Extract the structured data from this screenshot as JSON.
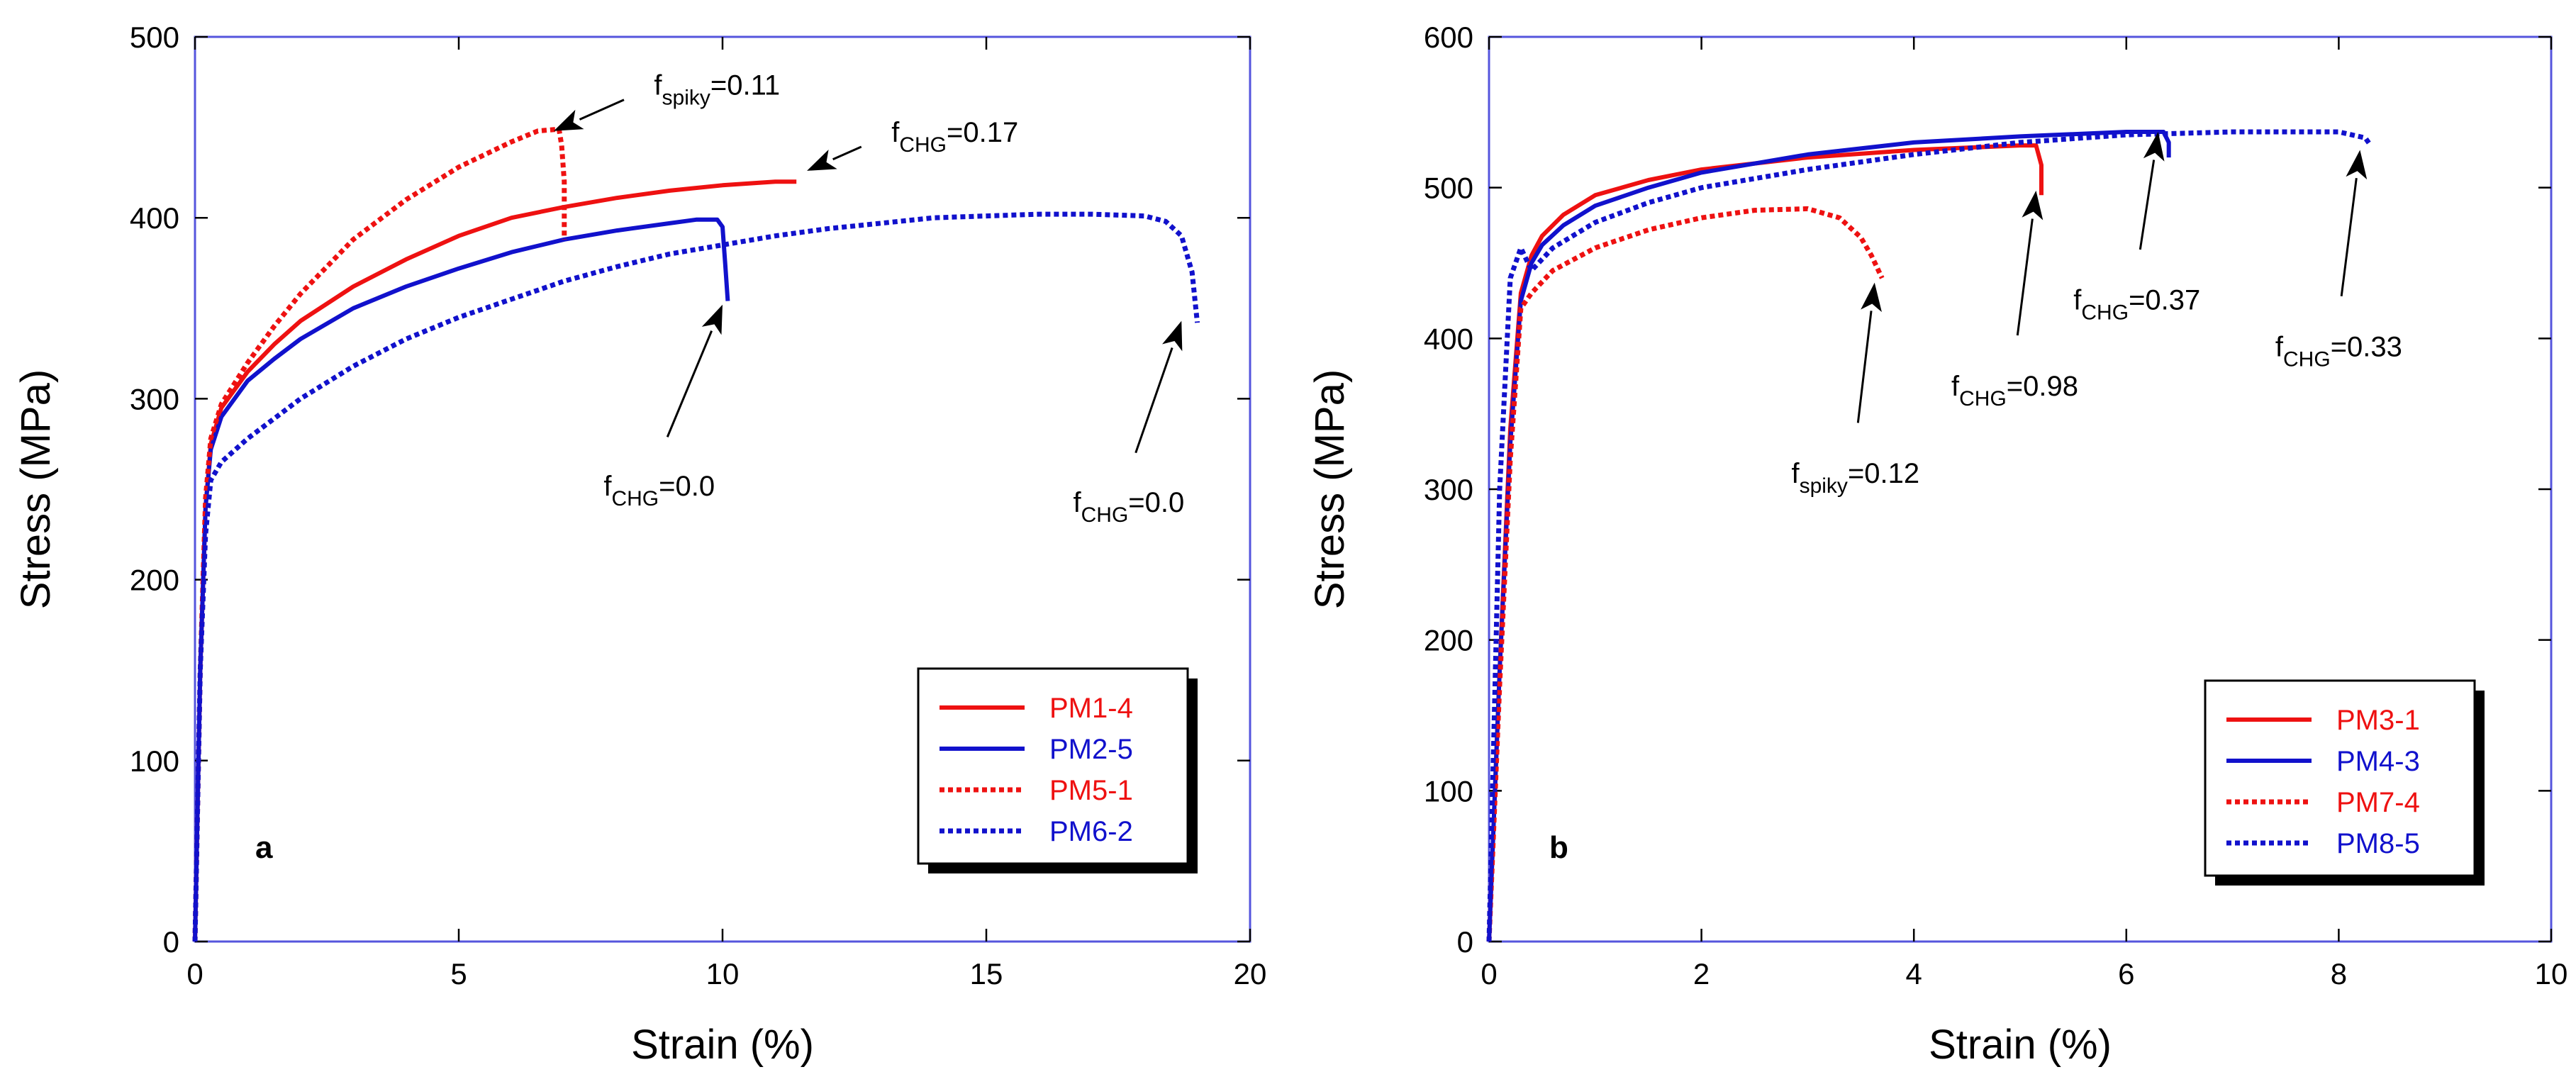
{
  "colors": {
    "red": "#ee1111",
    "blue": "#1111cc",
    "frame": "#5555dd"
  },
  "chart_data": [
    {
      "type": "line",
      "panel_label": "a",
      "xlabel": "Strain (%)",
      "ylabel": "Stress (MPa)",
      "xlim": [
        0,
        20
      ],
      "ylim": [
        0,
        500
      ],
      "xticks": [
        0,
        5,
        10,
        15,
        20
      ],
      "yticks": [
        0,
        100,
        200,
        300,
        400,
        500
      ],
      "series": [
        {
          "name": "PM1-4",
          "color": "red",
          "style": "solid",
          "x": [
            0,
            0.1,
            0.2,
            0.3,
            0.5,
            1,
            1.5,
            2,
            3,
            4,
            5,
            6,
            7,
            8,
            9,
            10,
            11,
            11.4
          ],
          "y": [
            0,
            150,
            240,
            275,
            295,
            315,
            330,
            343,
            362,
            377,
            390,
            400,
            406,
            411,
            415,
            418,
            420,
            420
          ]
        },
        {
          "name": "PM2-5",
          "color": "blue",
          "style": "solid",
          "x": [
            0,
            0.1,
            0.2,
            0.3,
            0.5,
            1,
            1.5,
            2,
            3,
            4,
            5,
            6,
            7,
            8,
            9,
            9.5,
            9.9,
            10.0,
            10.05,
            10.1
          ],
          "y": [
            0,
            150,
            240,
            272,
            290,
            310,
            322,
            333,
            350,
            362,
            372,
            381,
            388,
            393,
            397,
            399,
            399,
            395,
            375,
            354
          ]
        },
        {
          "name": "PM5-1",
          "color": "red",
          "style": "dashed",
          "x": [
            0,
            0.1,
            0.2,
            0.3,
            0.5,
            1,
            1.5,
            2,
            3,
            4,
            5,
            6,
            6.5,
            6.9,
            6.95,
            7.0,
            7.0
          ],
          "y": [
            0,
            150,
            245,
            278,
            297,
            320,
            340,
            358,
            388,
            410,
            428,
            442,
            448,
            449,
            440,
            420,
            388
          ]
        },
        {
          "name": "PM6-2",
          "color": "blue",
          "style": "dashed",
          "x": [
            0,
            0.1,
            0.2,
            0.3,
            0.5,
            1,
            2,
            3,
            4,
            5,
            6,
            7,
            8,
            9,
            10,
            11,
            12,
            13,
            14,
            15,
            16,
            17,
            18,
            18.4,
            18.7,
            18.9,
            19.0
          ],
          "y": [
            0,
            150,
            225,
            255,
            265,
            278,
            300,
            318,
            333,
            345,
            355,
            365,
            373,
            380,
            385,
            390,
            394,
            397,
            400,
            401,
            402,
            402,
            401,
            398,
            390,
            370,
            342
          ]
        }
      ],
      "legend": {
        "entries": [
          "PM1-4",
          "PM2-5",
          "PM5-1",
          "PM6-2"
        ],
        "placement": "bottom-right"
      },
      "annotations": [
        {
          "base": "f",
          "sub": "spiky",
          "text": "=0.11",
          "point": [
            6.8,
            448
          ],
          "label_at": [
            8.5,
            470
          ]
        },
        {
          "base": "f",
          "sub": "CHG",
          "text": "=0.17",
          "point": [
            11.6,
            426
          ],
          "label_at": [
            13.0,
            444
          ]
        },
        {
          "base": "f",
          "sub": "CHG",
          "text": "=0.0",
          "point": [
            10.0,
            352
          ],
          "label_at": [
            8.8,
            268
          ]
        },
        {
          "base": "f",
          "sub": "CHG",
          "text": "=0.0",
          "point": [
            18.7,
            343
          ],
          "label_at": [
            17.7,
            259
          ]
        }
      ]
    },
    {
      "type": "line",
      "panel_label": "b",
      "xlabel": "Strain (%)",
      "ylabel": "Stress (MPa)",
      "xlim": [
        0,
        10
      ],
      "ylim": [
        0,
        600
      ],
      "xticks": [
        0,
        2,
        4,
        6,
        8,
        10
      ],
      "yticks": [
        0,
        100,
        200,
        300,
        400,
        500,
        600
      ],
      "series": [
        {
          "name": "PM3-1",
          "color": "red",
          "style": "solid",
          "x": [
            0,
            0.1,
            0.2,
            0.3,
            0.4,
            0.5,
            0.7,
            1,
            1.5,
            2,
            3,
            4,
            5,
            5.15,
            5.2,
            5.2
          ],
          "y": [
            0,
            180,
            340,
            430,
            455,
            468,
            482,
            495,
            505,
            512,
            520,
            525,
            528,
            528,
            515,
            495
          ]
        },
        {
          "name": "PM4-3",
          "color": "blue",
          "style": "solid",
          "x": [
            0,
            0.1,
            0.2,
            0.3,
            0.4,
            0.5,
            0.7,
            1,
            1.5,
            2,
            3,
            4,
            5,
            6,
            6.35,
            6.4,
            6.4
          ],
          "y": [
            0,
            180,
            330,
            425,
            450,
            462,
            475,
            488,
            500,
            510,
            522,
            530,
            534,
            537,
            537,
            530,
            520
          ]
        },
        {
          "name": "PM7-4",
          "color": "red",
          "style": "dashed",
          "x": [
            0,
            0.1,
            0.2,
            0.3,
            0.4,
            0.6,
            1,
            1.5,
            2,
            2.5,
            3,
            3.3,
            3.5,
            3.6,
            3.7
          ],
          "y": [
            0,
            170,
            320,
            420,
            430,
            445,
            460,
            472,
            480,
            485,
            486,
            480,
            467,
            455,
            440
          ]
        },
        {
          "name": "PM8-5",
          "color": "blue",
          "style": "dashed",
          "x": [
            0,
            0.05,
            0.1,
            0.2,
            0.3,
            0.4,
            0.6,
            1,
            1.5,
            2,
            3,
            4,
            5,
            6,
            7,
            8,
            8.25,
            8.3
          ],
          "y": [
            0,
            150,
            300,
            440,
            460,
            445,
            460,
            477,
            490,
            500,
            512,
            522,
            530,
            535,
            537,
            537,
            533,
            528
          ]
        }
      ],
      "legend": {
        "entries": [
          "PM3-1",
          "PM4-3",
          "PM7-4",
          "PM8-5"
        ],
        "placement": "bottom-right"
      },
      "annotations": [
        {
          "base": "f",
          "sub": "spiky",
          "text": "=0.12",
          "point": [
            3.63,
            437
          ],
          "label_at": [
            3.45,
            330
          ]
        },
        {
          "base": "f",
          "sub": "CHG",
          "text": "=0.98",
          "point": [
            5.15,
            498
          ],
          "label_at": [
            4.95,
            388
          ]
        },
        {
          "base": "f",
          "sub": "CHG",
          "text": "=0.37",
          "point": [
            6.3,
            537
          ],
          "label_at": [
            6.1,
            445
          ]
        },
        {
          "base": "f",
          "sub": "CHG",
          "text": "=0.33",
          "point": [
            8.2,
            525
          ],
          "label_at": [
            8.0,
            414
          ]
        }
      ]
    }
  ]
}
